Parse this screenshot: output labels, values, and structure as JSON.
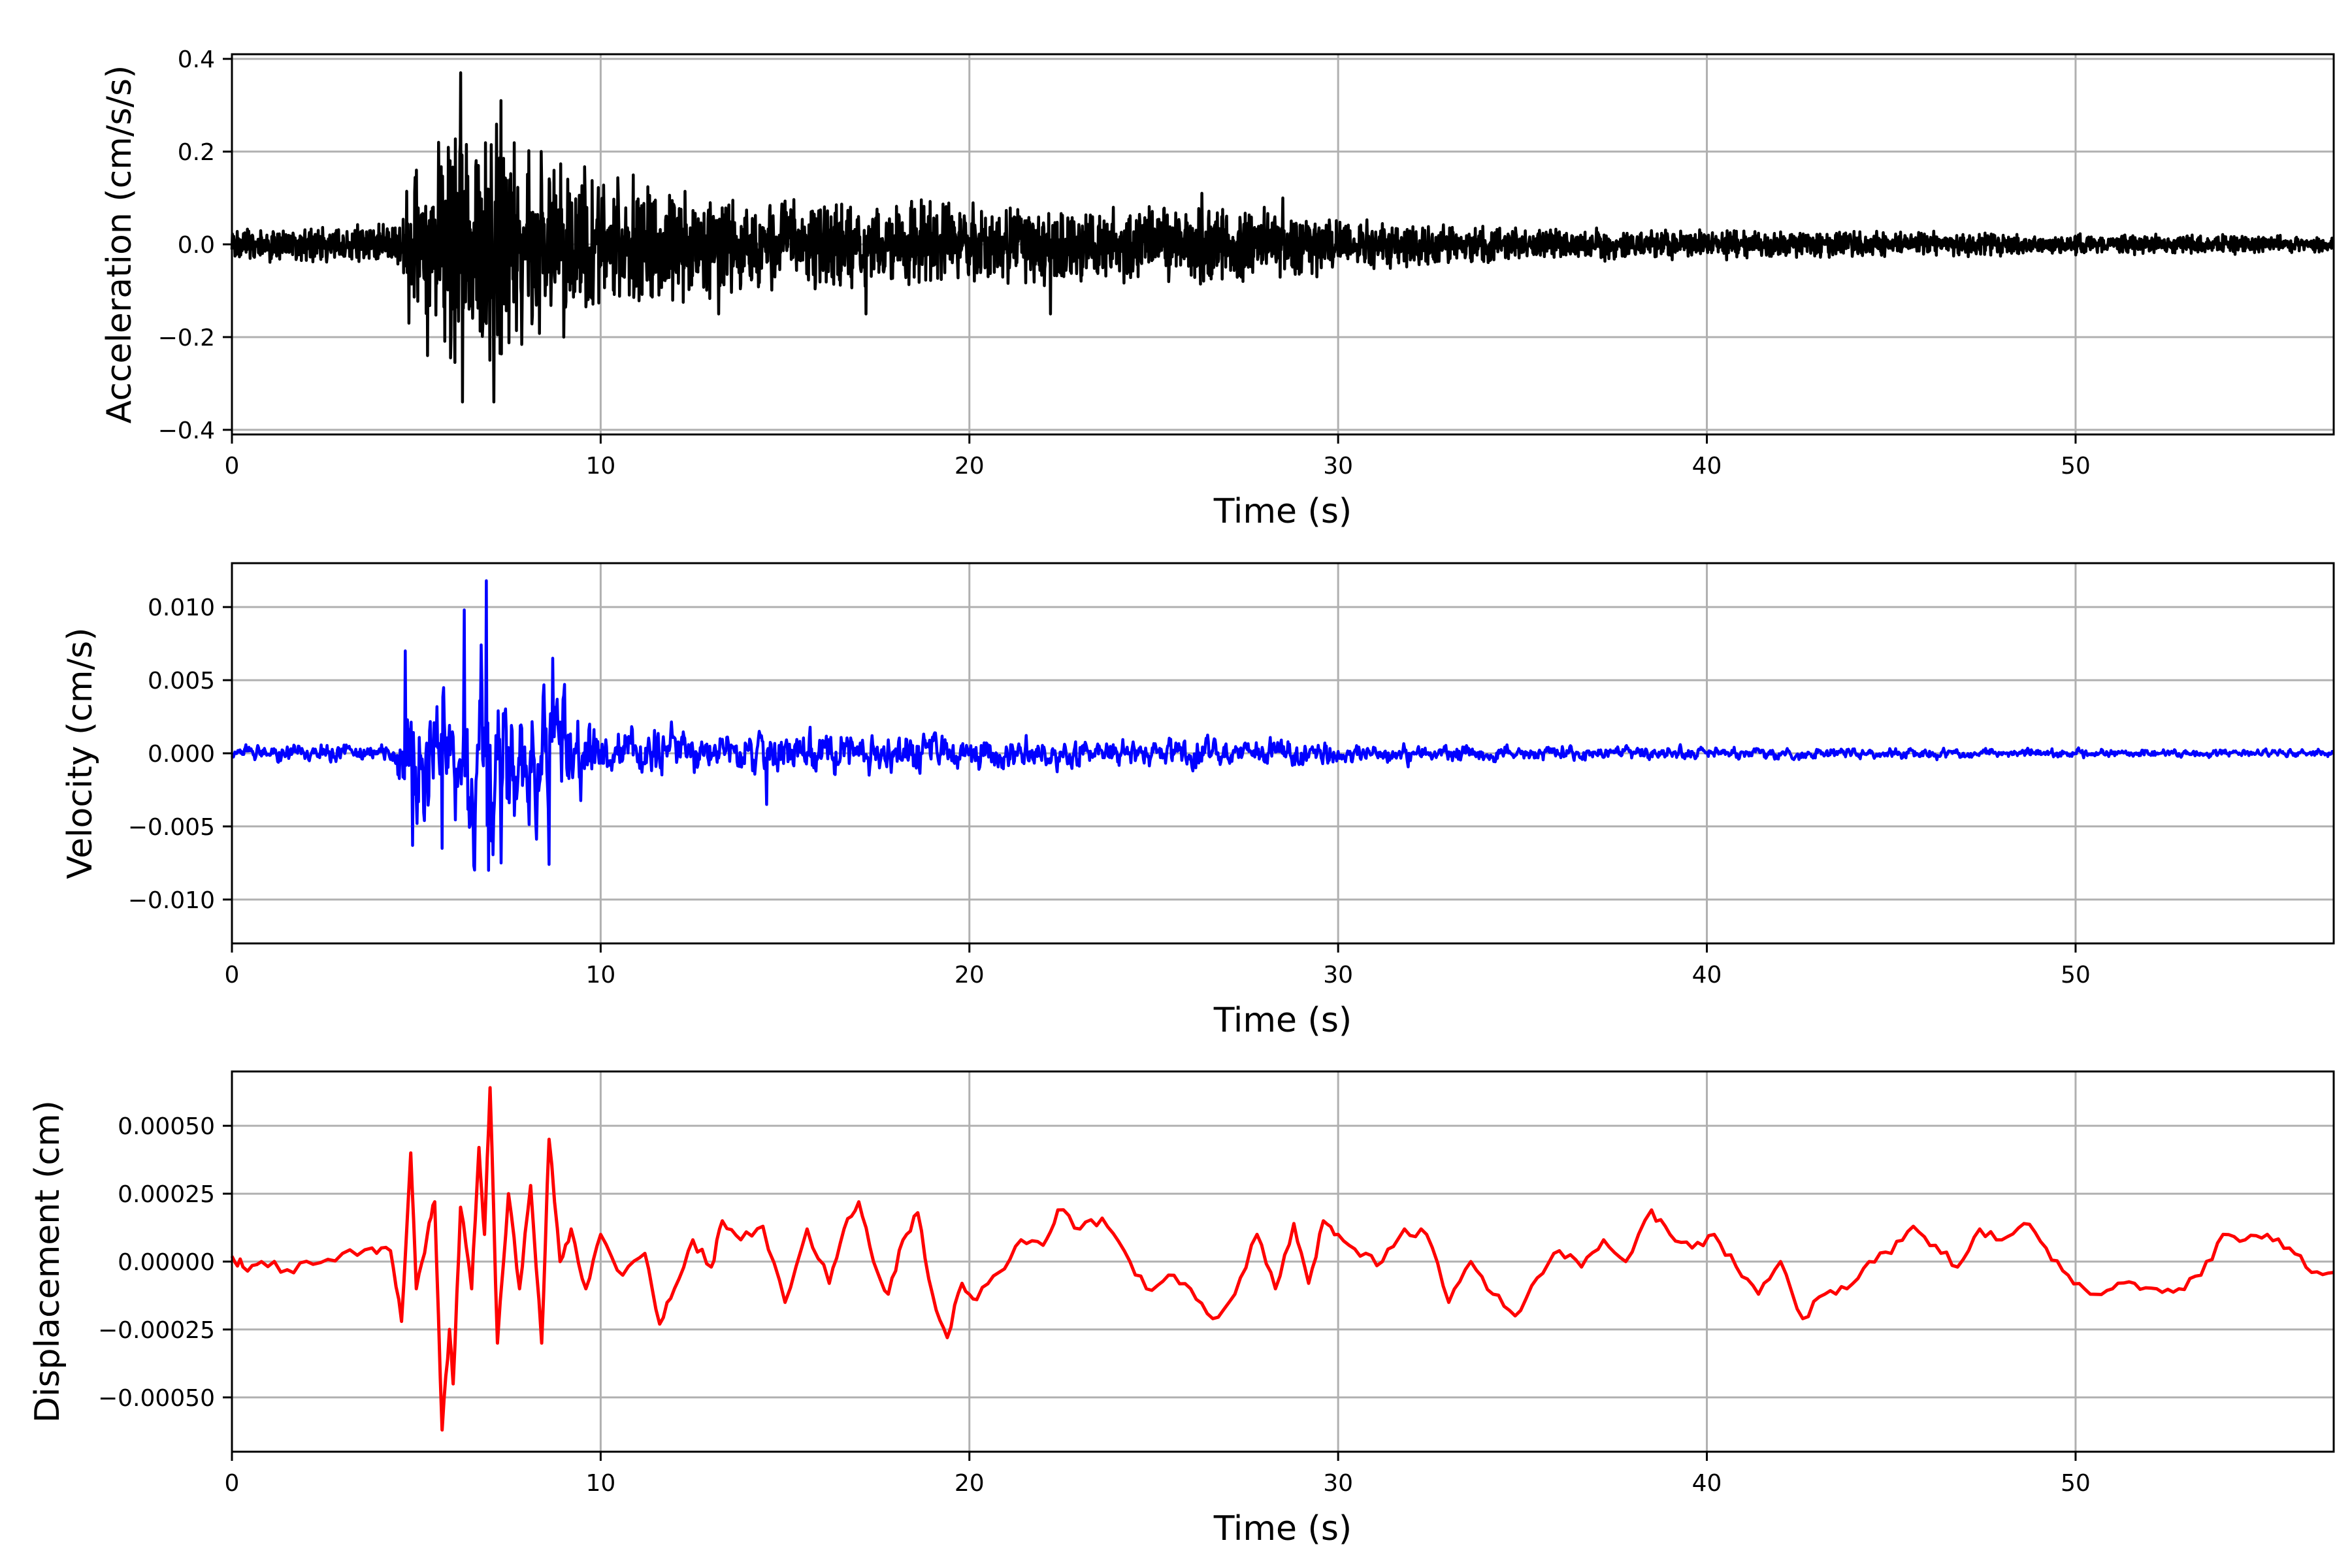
{
  "chart_data": [
    {
      "type": "line",
      "panel": "acceleration",
      "xlabel": "Time (s)",
      "ylabel": "Acceleration (cm/s/s)",
      "xlim": [
        0,
        57
      ],
      "ylim": [
        -0.41,
        0.41
      ],
      "xticks": [
        0,
        10,
        20,
        30,
        40,
        50
      ],
      "xtick_labels": [
        "0",
        "10",
        "20",
        "30",
        "40",
        "50"
      ],
      "yticks": [
        -0.4,
        -0.2,
        0.0,
        0.2,
        0.4
      ],
      "ytick_labels": [
        "−0.4",
        "−0.2",
        "0.0",
        "0.2",
        "0.4"
      ],
      "grid": true,
      "color": "#000000",
      "series": [
        {
          "envelope": {
            "t": [
              0,
              4.5,
              4.8,
              5.5,
              6.2,
              7.0,
              8.0,
              9.0,
              10.0,
              12.0,
              15.0,
              20.0,
              25.0,
              28.5,
              30.0,
              35.0,
              40.0,
              45.0,
              50.0,
              57.0
            ],
            "amp": [
              0.04,
              0.05,
              0.15,
              0.22,
              0.37,
              0.31,
              0.25,
              0.19,
              0.17,
              0.13,
              0.11,
              0.1,
              0.09,
              0.09,
              0.06,
              0.04,
              0.035,
              0.03,
              0.025,
              0.02
            ]
          },
          "peaks": [
            {
              "t": 4.8,
              "y": -0.17
            },
            {
              "t": 5.0,
              "y": 0.16
            },
            {
              "t": 5.3,
              "y": -0.24
            },
            {
              "t": 5.6,
              "y": 0.22
            },
            {
              "t": 6.2,
              "y": 0.37
            },
            {
              "t": 6.25,
              "y": -0.34
            },
            {
              "t": 7.0,
              "y": -0.25
            },
            {
              "t": 7.3,
              "y": 0.31
            },
            {
              "t": 7.1,
              "y": -0.34
            },
            {
              "t": 9.0,
              "y": -0.2
            },
            {
              "t": 13.2,
              "y": -0.15
            },
            {
              "t": 17.2,
              "y": -0.15
            },
            {
              "t": 22.2,
              "y": -0.15
            },
            {
              "t": 26.3,
              "y": 0.11
            },
            {
              "t": 28.5,
              "y": 0.1
            }
          ]
        }
      ]
    },
    {
      "type": "line",
      "panel": "velocity",
      "xlabel": "Time (s)",
      "ylabel": "Velocity (cm/s)",
      "xlim": [
        0,
        57
      ],
      "ylim": [
        -0.013,
        0.013
      ],
      "xticks": [
        0,
        10,
        20,
        30,
        40,
        50
      ],
      "xtick_labels": [
        "0",
        "10",
        "20",
        "30",
        "40",
        "50"
      ],
      "yticks": [
        -0.01,
        -0.005,
        0.0,
        0.005,
        0.01
      ],
      "ytick_labels": [
        "−0.010",
        "−0.005",
        "0.000",
        "0.005",
        "0.010"
      ],
      "grid": true,
      "color": "#0000ff",
      "series": [
        {
          "envelope": {
            "t": [
              0,
              4.4,
              4.7,
              5.5,
              6.2,
              6.9,
              7.5,
              8.5,
              9.5,
              10.0,
              12.0,
              15.0,
              18.0,
              20.0,
              25.0,
              28.5,
              30.0,
              35.0,
              40.0,
              45.0,
              50.0,
              57.0
            ],
            "amp": [
              0.0008,
              0.001,
              0.0065,
              0.0065,
              0.01,
              0.0115,
              0.0075,
              0.007,
              0.0045,
              0.003,
              0.0025,
              0.0025,
              0.0025,
              0.0018,
              0.0016,
              0.0016,
              0.0011,
              0.0009,
              0.0007,
              0.0006,
              0.0005,
              0.0004
            ]
          },
          "peaks": [
            {
              "t": 4.7,
              "y": 0.007
            },
            {
              "t": 4.9,
              "y": -0.0063
            },
            {
              "t": 5.7,
              "y": -0.0065
            },
            {
              "t": 6.3,
              "y": 0.0098
            },
            {
              "t": 6.9,
              "y": 0.0118
            },
            {
              "t": 6.95,
              "y": -0.008
            },
            {
              "t": 7.3,
              "y": -0.0075
            },
            {
              "t": 8.7,
              "y": 0.0065
            },
            {
              "t": 8.6,
              "y": -0.0076
            },
            {
              "t": 14.5,
              "y": -0.0035
            }
          ]
        }
      ]
    },
    {
      "type": "line",
      "panel": "displacement",
      "xlabel": "Time (s)",
      "ylabel": "Displacement (cm)",
      "xlim": [
        0,
        57
      ],
      "ylim": [
        -0.0007,
        0.0007
      ],
      "xticks": [
        0,
        10,
        20,
        30,
        40,
        50
      ],
      "xtick_labels": [
        "0",
        "10",
        "20",
        "30",
        "40",
        "50"
      ],
      "yticks": [
        -0.0005,
        -0.00025,
        0.0,
        0.00025,
        0.0005
      ],
      "ytick_labels": [
        "−0.00050",
        "−0.00025",
        "0.00000",
        "0.00025",
        "0.00050"
      ],
      "grid": true,
      "color": "#ff0000",
      "series": [
        {
          "points": [
            [
              0,
              2e-05
            ],
            [
              0.3,
              -2e-05
            ],
            [
              0.8,
              0.0
            ],
            [
              1.5,
              -3e-05
            ],
            [
              2.2,
              -1e-05
            ],
            [
              3.0,
              3e-05
            ],
            [
              3.8,
              5e-05
            ],
            [
              4.3,
              4e-05
            ],
            [
              4.6,
              -0.00022
            ],
            [
              4.85,
              0.0004
            ],
            [
              5.0,
              -0.0001
            ],
            [
              5.3,
              0.0001
            ],
            [
              5.5,
              0.00022
            ],
            [
              5.7,
              -0.00062
            ],
            [
              5.9,
              -0.00025
            ],
            [
              6.0,
              -0.00045
            ],
            [
              6.2,
              0.0002
            ],
            [
              6.5,
              -0.0001
            ],
            [
              6.7,
              0.00042
            ],
            [
              6.85,
              0.0001
            ],
            [
              7.0,
              0.00064
            ],
            [
              7.2,
              -0.0003
            ],
            [
              7.5,
              0.00025
            ],
            [
              7.8,
              -0.0001
            ],
            [
              8.1,
              0.00028
            ],
            [
              8.4,
              -0.0003
            ],
            [
              8.6,
              0.00045
            ],
            [
              8.9,
              0.0
            ],
            [
              9.2,
              0.00012
            ],
            [
              9.6,
              -0.0001
            ],
            [
              10.0,
              0.0001
            ],
            [
              10.6,
              -5e-05
            ],
            [
              11.2,
              3e-05
            ],
            [
              11.6,
              -0.00023
            ],
            [
              12.0,
              -0.0001
            ],
            [
              12.5,
              8e-05
            ],
            [
              13.0,
              -2e-05
            ],
            [
              13.3,
              0.00015
            ],
            [
              13.8,
              8e-05
            ],
            [
              14.4,
              0.00013
            ],
            [
              15.0,
              -0.00015
            ],
            [
              15.6,
              0.00012
            ],
            [
              16.2,
              -8e-05
            ],
            [
              16.6,
              0.00012
            ],
            [
              17.0,
              0.00022
            ],
            [
              17.4,
              0.0
            ],
            [
              17.8,
              -0.00012
            ],
            [
              18.2,
              8e-05
            ],
            [
              18.6,
              0.00018
            ],
            [
              19.0,
              -0.00012
            ],
            [
              19.4,
              -0.00028
            ],
            [
              19.8,
              -8e-05
            ],
            [
              20.2,
              -0.00014
            ],
            [
              20.8,
              -4e-05
            ],
            [
              21.4,
              8e-05
            ],
            [
              22.0,
              6e-05
            ],
            [
              22.4,
              0.00019
            ],
            [
              23.0,
              0.00012
            ],
            [
              23.6,
              0.00016
            ],
            [
              24.2,
              4e-05
            ],
            [
              24.8,
              -0.0001
            ],
            [
              25.4,
              -5e-05
            ],
            [
              26.0,
              -0.0001
            ],
            [
              26.6,
              -0.00021
            ],
            [
              27.2,
              -0.00012
            ],
            [
              27.8,
              0.0001
            ],
            [
              28.3,
              -0.0001
            ],
            [
              28.8,
              0.00014
            ],
            [
              29.2,
              -8e-05
            ],
            [
              29.6,
              0.00015
            ],
            [
              30.0,
              0.0001
            ],
            [
              30.6,
              2e-05
            ],
            [
              31.2,
              0.0
            ],
            [
              31.8,
              0.00012
            ],
            [
              32.4,
              0.0001
            ],
            [
              33.0,
              -0.00015
            ],
            [
              33.6,
              0.0
            ],
            [
              34.2,
              -0.00012
            ],
            [
              34.8,
              -0.0002
            ],
            [
              35.4,
              -6e-05
            ],
            [
              36.0,
              4e-05
            ],
            [
              36.6,
              -2e-05
            ],
            [
              37.2,
              8e-05
            ],
            [
              37.8,
              0.0
            ],
            [
              38.5,
              0.00019
            ],
            [
              39.0,
              0.0001
            ],
            [
              39.6,
              5e-05
            ],
            [
              40.2,
              0.0001
            ],
            [
              40.8,
              -2e-05
            ],
            [
              41.4,
              -0.00012
            ],
            [
              42.0,
              0.0
            ],
            [
              42.6,
              -0.00021
            ],
            [
              43.2,
              -0.00012
            ],
            [
              43.8,
              -0.0001
            ],
            [
              44.4,
              0.0
            ],
            [
              45.0,
              3e-05
            ],
            [
              45.6,
              0.00013
            ],
            [
              46.2,
              6e-05
            ],
            [
              46.8,
              -2e-05
            ],
            [
              47.4,
              0.00012
            ],
            [
              48.0,
              8e-05
            ],
            [
              48.6,
              0.00014
            ],
            [
              49.2,
              5e-05
            ],
            [
              49.8,
              -5e-05
            ],
            [
              50.4,
              -0.00012
            ],
            [
              51.0,
              -0.0001
            ],
            [
              51.6,
              -8e-05
            ],
            [
              52.2,
              -0.0001
            ],
            [
              52.8,
              -0.0001
            ],
            [
              53.4,
              -5e-05
            ],
            [
              54.0,
              0.0001
            ],
            [
              54.6,
              8e-05
            ],
            [
              55.2,
              0.0001
            ],
            [
              55.8,
              5e-05
            ],
            [
              56.4,
              -4e-05
            ],
            [
              57.0,
              -4e-05
            ]
          ]
        }
      ]
    }
  ]
}
